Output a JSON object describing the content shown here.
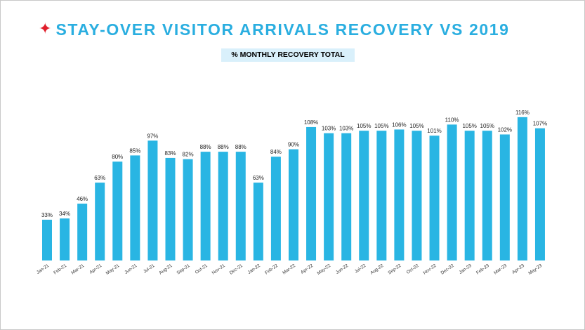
{
  "header": {
    "star_icon": "four-point-star-icon",
    "title": "STAY-OVER VISITOR ARRIVALS RECOVERY VS 2019",
    "subtitle": "% MONTHLY RECOVERY TOTAL"
  },
  "colors": {
    "bar": "#29b5e3",
    "title": "#2aaee0",
    "star": "#e01e2b",
    "subtitle_bg": "#d9f0fb"
  },
  "chart_data": {
    "type": "bar",
    "title": "STAY-OVER VISITOR ARRIVALS RECOVERY VS 2019",
    "subtitle": "% MONTHLY RECOVERY TOTAL",
    "xlabel": "",
    "ylabel": "",
    "ylim": [
      0,
      120
    ],
    "grid": false,
    "legend": "none",
    "value_suffix": "%",
    "categories": [
      "Jan-21",
      "Feb-21",
      "Mar-21",
      "Apr-21",
      "May-21",
      "Jun-21",
      "Jul-21",
      "Aug-21",
      "Sep-21",
      "Oct-21",
      "Nov-21",
      "Dec-21",
      "Jan-22",
      "Feb-22",
      "Mar-22",
      "Apr-22",
      "May-22",
      "Jun-22",
      "Jul-22",
      "Aug-22",
      "Sep-22",
      "Oct-22",
      "Nov-22",
      "Dec-22",
      "Jan-23",
      "Feb-23",
      "Mar-23",
      "Apr-23",
      "May-23"
    ],
    "values": [
      33,
      34,
      46,
      63,
      80,
      85,
      97,
      83,
      82,
      88,
      88,
      88,
      63,
      84,
      90,
      108,
      103,
      103,
      105,
      105,
      106,
      105,
      101,
      110,
      105,
      105,
      102,
      116,
      107
    ]
  }
}
